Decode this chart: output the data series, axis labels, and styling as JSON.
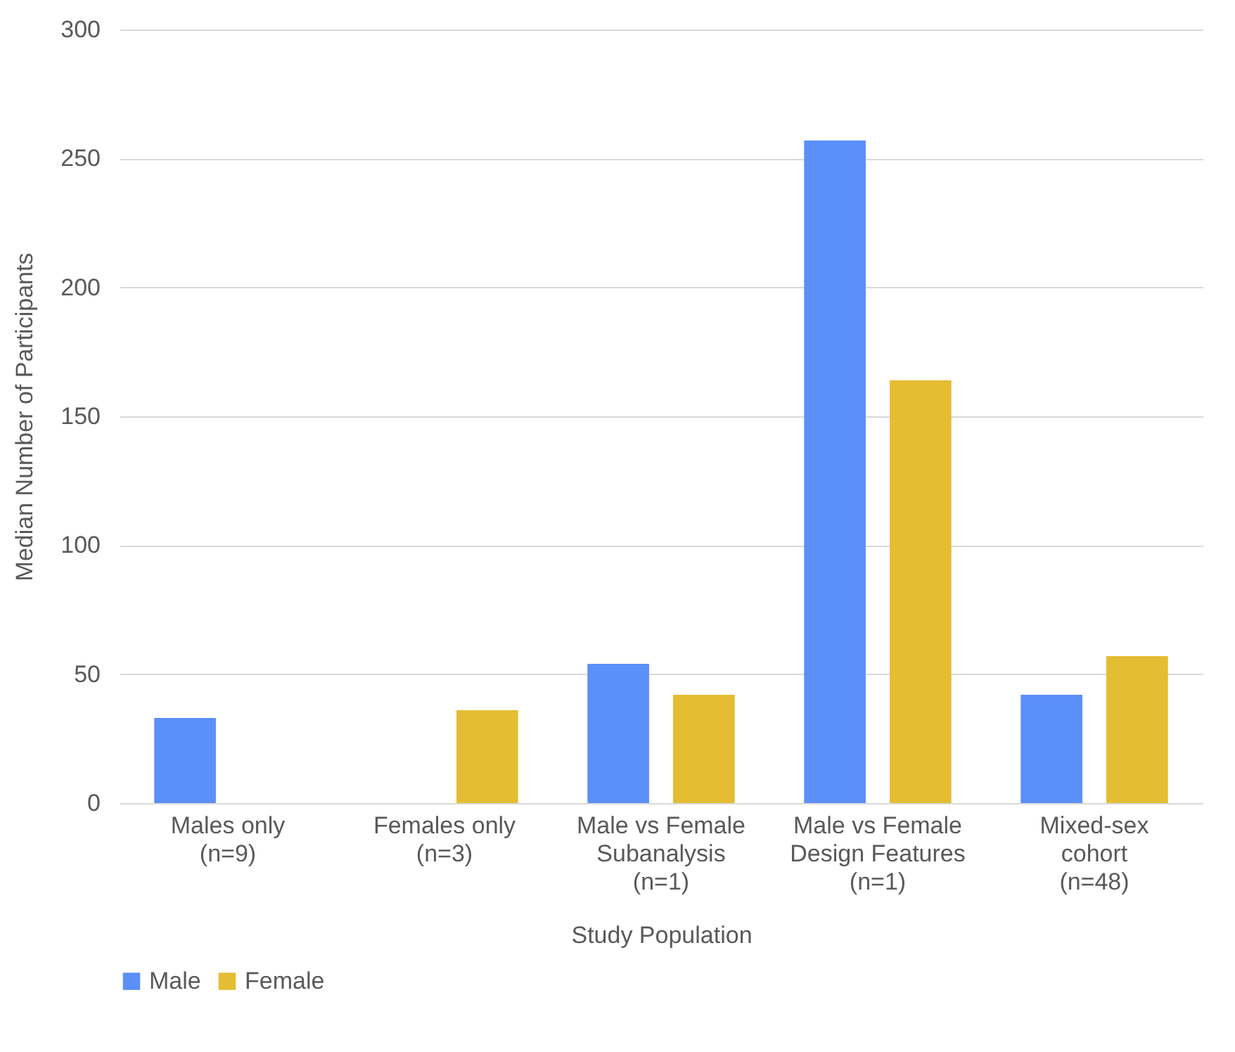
{
  "chart_data": {
    "type": "bar",
    "xlabel": "Study Population",
    "ylabel": "Median Number of Participants",
    "categories": [
      "Males only\n(n=9)",
      "Females only\n(n=3)",
      "Male vs Female\nSubanalysis\n(n=1)",
      "Male vs Female\nDesign Features\n(n=1)",
      "Mixed-sex\ncohort\n(n=48)"
    ],
    "series": [
      {
        "name": "Male",
        "color": "#5b8ff9",
        "values": [
          33,
          null,
          54,
          257,
          42
        ]
      },
      {
        "name": "Female",
        "color": "#e5bd33",
        "values": [
          null,
          36,
          42,
          164,
          57
        ]
      }
    ],
    "ylim": [
      0,
      300
    ],
    "yticks": [
      0,
      50,
      100,
      150,
      200,
      250,
      300
    ],
    "grid": "y",
    "legend": "bottom"
  }
}
